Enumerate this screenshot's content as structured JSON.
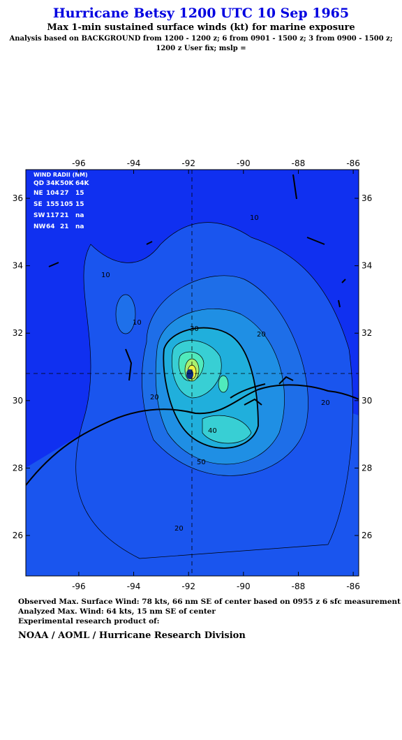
{
  "header": {
    "title": "Hurricane Betsy 1200 UTC 10 Sep 1965",
    "subtitle": "Max 1-min sustained surface winds (kt) for marine exposure",
    "analysis": "Analysis based on  BACKGROUND from 1200 - 1200 z;  6 from 0901 - 1500 z;  3 from 0900 - 1500 z;",
    "analysis2": "1200 z User fix; mslp ="
  },
  "map": {
    "xlim": [
      -97.93,
      -85.8
    ],
    "ylim": [
      24.8,
      36.85
    ],
    "xticks": [
      -96,
      -94,
      -92,
      -90,
      -88,
      -86
    ],
    "yticks": [
      26,
      28,
      30,
      32,
      34,
      36
    ]
  },
  "wind_radii": {
    "title": "WIND RADII (NM)",
    "columns": [
      "QD",
      "34K",
      "50K",
      "64K"
    ],
    "rows": [
      [
        "NE",
        "104",
        "27",
        "15"
      ],
      [
        "SE",
        "155",
        "105",
        "15"
      ],
      [
        "SW",
        "117",
        "21",
        "na"
      ],
      [
        "NW",
        "64",
        "21",
        "na"
      ]
    ]
  },
  "contours": [
    "10",
    "10",
    "10",
    "20",
    "20",
    "20",
    "30",
    "40",
    "50",
    "20"
  ],
  "footer": {
    "observed": "Observed Max. Surface Wind: 78 kts, 66 nm SE of center based on 0955 z 6 sfc measurement",
    "analyzed": "Analyzed Max. Wind: 64 kts, 15 nm SE of center",
    "experimental": "Experimental research product of:",
    "org": "NOAA / AOML / Hurricane Research Division"
  }
}
